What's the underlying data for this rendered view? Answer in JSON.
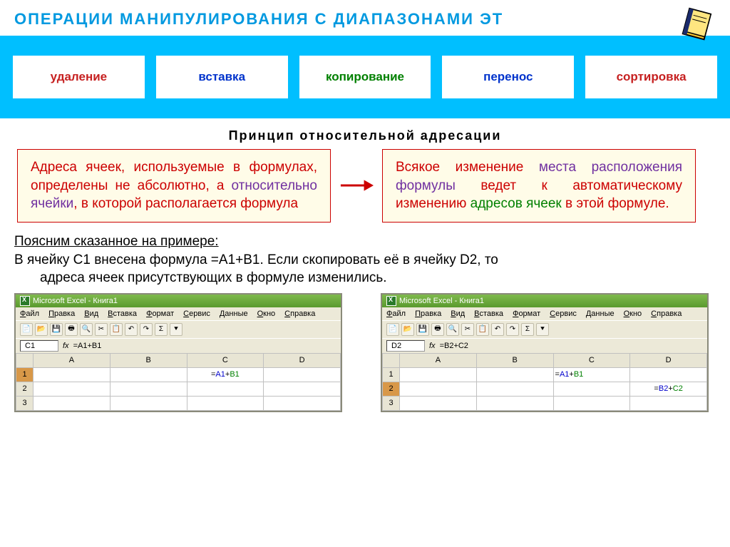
{
  "title": "ОПЕРАЦИИ  МАНИПУЛИРОВАНИЯ  С  ДИАПАЗОНАМИ  ЭТ",
  "operations": [
    {
      "label": "удаление",
      "colorClass": "op-red"
    },
    {
      "label": "вставка",
      "colorClass": "op-blue"
    },
    {
      "label": "копирование",
      "colorClass": "op-green"
    },
    {
      "label": "перенос",
      "colorClass": "op-blue"
    },
    {
      "label": "сортировка",
      "colorClass": "op-red"
    }
  ],
  "subtitle": "Принцип  относительной  адресации",
  "left_box": {
    "parts": [
      {
        "text": "        Адреса ячеек, используемые в формулах, определены не абсолютно, а ",
        "cls": "t-red"
      },
      {
        "text": "относительно ячейки",
        "cls": "t-purple"
      },
      {
        "text": ", в которой располагается формула",
        "cls": "t-red"
      }
    ]
  },
  "right_box": {
    "parts": [
      {
        "text": "        Всякое изменение ",
        "cls": "t-red"
      },
      {
        "text": "места расположения формулы",
        "cls": "t-purple"
      },
      {
        "text": " ведет к автоматическому изменению ",
        "cls": "t-red"
      },
      {
        "text": "адресов ячеек",
        "cls": "t-green"
      },
      {
        "text": " в этой формуле.",
        "cls": "t-red"
      }
    ]
  },
  "example": {
    "line1": "Поясним сказанное на примере:",
    "line2": "В ячейку С1 внесена формула =А1+В1. Если скопировать её в ячейку D2, то",
    "line3": "адреса ячеек присутствующих в формуле изменились."
  },
  "excel": {
    "title": "Microsoft Excel - Книга1",
    "menu": [
      "Файл",
      "Правка",
      "Вид",
      "Вставка",
      "Формат",
      "Сервис",
      "Данные",
      "Окно",
      "Справка"
    ],
    "toolbar_glyphs": [
      "📄",
      "📂",
      "💾",
      "🖶",
      "🔍",
      "✂",
      "📋",
      "↶",
      "↷",
      "Σ",
      "⯆"
    ],
    "columns": [
      "",
      "A",
      "B",
      "C",
      "D"
    ],
    "left": {
      "cellRef": "C1",
      "formula": "=A1+B1",
      "activeRow": 1,
      "activeCol": "C",
      "cellParts": [
        {
          "t": "=",
          "c": "f-black"
        },
        {
          "t": "A1",
          "c": "f-blue"
        },
        {
          "t": "+",
          "c": "f-black"
        },
        {
          "t": "B1",
          "c": "f-green"
        }
      ]
    },
    "right": {
      "cellRef": "D2",
      "formula": "=B2+C2",
      "c1_parts": [
        {
          "t": "=",
          "c": "f-black"
        },
        {
          "t": "A1",
          "c": "f-blue"
        },
        {
          "t": "+",
          "c": "f-black"
        },
        {
          "t": "B1",
          "c": "f-green"
        }
      ],
      "d2_parts": [
        {
          "t": "=",
          "c": "f-black"
        },
        {
          "t": "B2",
          "c": "f-blue"
        },
        {
          "t": "+",
          "c": "f-black"
        },
        {
          "t": "C2",
          "c": "f-green"
        }
      ],
      "activeRow": 2
    }
  },
  "colors": {
    "header_text": "#0099e0",
    "ops_bar_bg": "#00bfff",
    "box_bg": "#fffce8",
    "box_border": "#cc0000",
    "arrow": "#cc0000"
  }
}
